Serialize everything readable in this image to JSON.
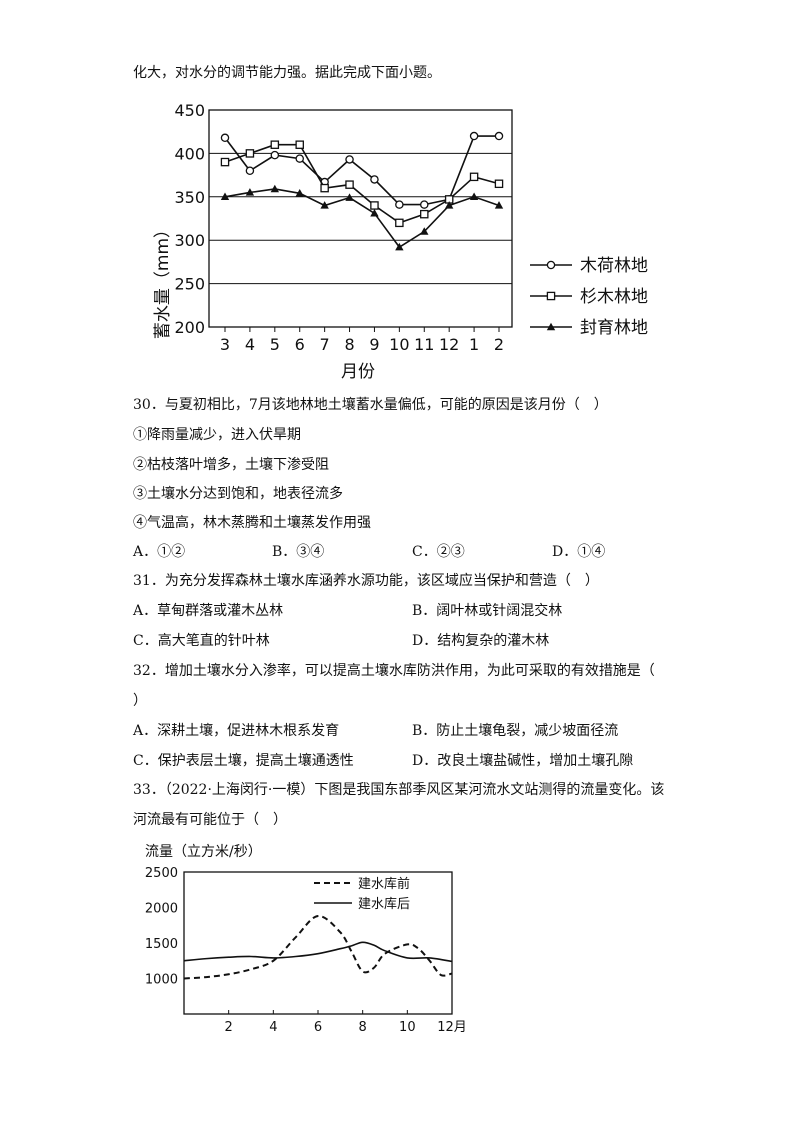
{
  "intro": "化大，对水分的调节能力强。据此完成下面小题。",
  "chart_data": [
    {
      "type": "line",
      "ylabel": "蓄水量（mm）",
      "xlabel": "月份",
      "categories": [
        "3",
        "4",
        "5",
        "6",
        "7",
        "8",
        "9",
        "10",
        "11",
        "12",
        "1",
        "2"
      ],
      "ylim": [
        200,
        450
      ],
      "yticks": [
        "200",
        "250",
        "300",
        "350",
        "400",
        "450"
      ],
      "grid": "horizontal",
      "legend_position": "right",
      "series": [
        {
          "name": "木荷林地",
          "marker": "circle",
          "values": [
            418,
            380,
            398,
            394,
            367,
            393,
            370,
            341,
            341,
            347,
            420,
            420
          ]
        },
        {
          "name": "杉木林地",
          "marker": "square",
          "values": [
            390,
            400,
            410,
            410,
            360,
            364,
            340,
            320,
            330,
            347,
            373,
            365
          ]
        },
        {
          "name": "封育林地",
          "marker": "triangle",
          "values": [
            350,
            355,
            359,
            354,
            340,
            349,
            331,
            292,
            310,
            340,
            350,
            340
          ]
        }
      ]
    },
    {
      "type": "line",
      "ylabel": "流量（立方米/秒）",
      "x_ticks": [
        "2",
        "4",
        "6",
        "8",
        "10",
        "12月"
      ],
      "xlim": [
        0,
        12
      ],
      "ylim": [
        500,
        2500
      ],
      "yticks": [
        "1000",
        "1500",
        "2000",
        "2500"
      ],
      "legend_position": "top-right",
      "series": [
        {
          "name": "建水库前",
          "style": "dashed",
          "x": [
            0,
            1,
            2,
            3,
            4,
            5,
            6,
            7,
            7.5,
            8,
            8.5,
            9,
            10,
            10.5,
            11,
            11.5,
            12
          ],
          "values": [
            1000,
            1020,
            1060,
            1130,
            1250,
            1580,
            1880,
            1650,
            1380,
            1100,
            1150,
            1350,
            1480,
            1420,
            1250,
            1050,
            1070
          ]
        },
        {
          "name": "建水库后",
          "style": "solid",
          "x": [
            0,
            1,
            2,
            3,
            4,
            5,
            6,
            7,
            7.5,
            8,
            8.5,
            9,
            10,
            11,
            12
          ],
          "values": [
            1250,
            1280,
            1300,
            1310,
            1290,
            1310,
            1350,
            1420,
            1460,
            1510,
            1470,
            1390,
            1290,
            1290,
            1240
          ]
        }
      ]
    }
  ],
  "q30": {
    "stem": "30．与夏初相比，7月该地林地土壤蓄水量偏低，可能的原因是该月份（　）",
    "items": [
      "①降雨量减少，进入伏旱期",
      "②枯枝落叶增多，土壤下渗受阻",
      "③土壤水分达到饱和，地表径流多",
      "④气温高，林木蒸腾和土壤蒸发作用强"
    ],
    "options": [
      "A．①②",
      "B．③④",
      "C．②③",
      "D．①④"
    ]
  },
  "q31": {
    "stem": "31．为充分发挥森林土壤水库涵养水源功能，该区域应当保护和营造（　）",
    "options": [
      "A．草甸群落或灌木丛林",
      "B．阔叶林或针阔混交林",
      "C．高大笔直的针叶林",
      "D．结构复杂的灌木林"
    ]
  },
  "q32": {
    "stem_line1": "32．增加土壤水分入渗率，可以提高土壤水库防洪作用，为此可采取的有效措施是（",
    "stem_line2": "）",
    "options": [
      "A．深耕土壤，促进林木根系发育",
      "B．防止土壤龟裂，减少坡面径流",
      "C．保护表层土壤，提高土壤通透性",
      "D．改良土壤盐碱性，增加土壤孔隙"
    ]
  },
  "q33": {
    "stem_line1": "33．（2022·上海闵行·一模）下图是我国东部季风区某河流水文站测得的流量变化。该",
    "stem_line2": "河流最有可能位于（　）"
  }
}
